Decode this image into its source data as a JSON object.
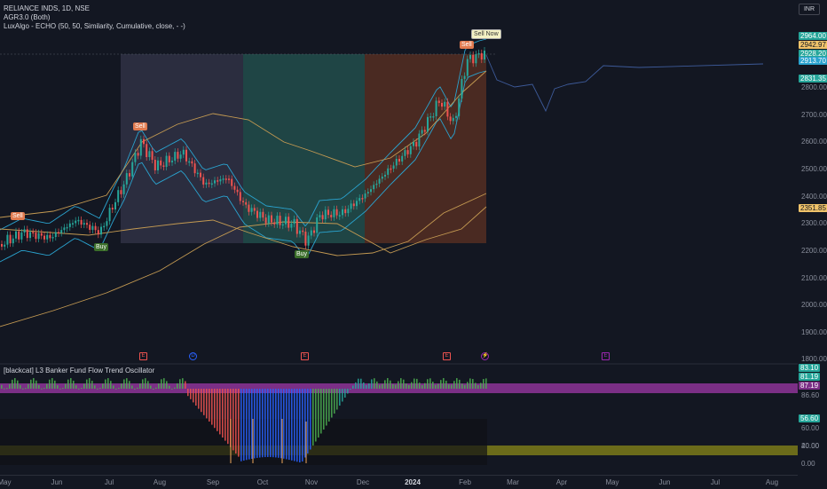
{
  "legend": {
    "symbol_line": "RELIANCE INDS, 1D, NSE",
    "indicator1": "AGR3.0 (Both)",
    "indicator2": "LuxAlgo - ECHO (50, 50, Similarity, Cumulative, close, - -)",
    "oscillator": "[blackcat] L3 Banker Fund Flow Trend Oscillator"
  },
  "currency": "INR",
  "price_axis": {
    "ticks": [
      "2800.00",
      "2700.00",
      "2600.00",
      "2500.00",
      "2400.00",
      "2300.00",
      "2200.00",
      "2100.00",
      "2000.00",
      "1900.00",
      "1800.00"
    ],
    "tags": [
      "2964.00",
      "2942.97",
      "2928.20",
      "2913.70",
      "2831.35",
      "2351.85"
    ]
  },
  "osc_axis": {
    "ticks": [
      "60.00",
      "40.00",
      "20.00",
      "0.00"
    ],
    "tags": [
      "83.10",
      "81.19",
      "87.19",
      "86.60",
      "56.60"
    ]
  },
  "time_axis": {
    "labels": [
      "May",
      "Jun",
      "Jul",
      "Aug",
      "Sep",
      "Oct",
      "Nov",
      "Dec",
      "2024",
      "Feb",
      "Mar",
      "Apr",
      "May",
      "Jun",
      "Jul",
      "Aug"
    ]
  },
  "signals": {
    "sell_label": "Sell",
    "buy_label": "Buy",
    "sell_now_label": "Sell Now"
  },
  "events": [
    "E",
    "D",
    "E",
    "E",
    "E"
  ],
  "colors": {
    "up": "#26a69a",
    "down": "#ef5350",
    "band": "#2aa3cf",
    "ma": "#c49a52",
    "sell": "#e07a4f",
    "buy": "#3b6e2a",
    "osc_band": "#7b2f86",
    "osc_low_band": "#6b6b1a"
  },
  "icons": [
    "flash-icon"
  ]
}
